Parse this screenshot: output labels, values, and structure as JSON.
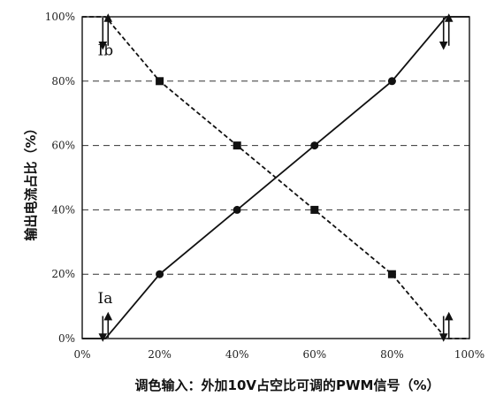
{
  "chart_data": {
    "type": "line",
    "xlabel": "调色输入：外加10V占空比可调的PWM信号（%）",
    "ylabel": "输出电流占比（%）",
    "xlim": [
      0,
      100
    ],
    "ylim": [
      0,
      100
    ],
    "x_ticks": [
      "0%",
      "20%",
      "40%",
      "60%",
      "80%",
      "100%"
    ],
    "y_ticks": [
      "0%",
      "20%",
      "40%",
      "60%",
      "80%",
      "100%"
    ],
    "grid": "horizontal dashed",
    "series": [
      {
        "name": "Ia",
        "line_style": "solid",
        "marker": "circle",
        "x": [
          0,
          6,
          20,
          40,
          60,
          80,
          94,
          100
        ],
        "y": [
          0,
          0,
          20,
          40,
          60,
          80,
          100,
          100
        ],
        "marked_points": [
          [
            20,
            20
          ],
          [
            40,
            40
          ],
          [
            60,
            60
          ],
          [
            80,
            80
          ]
        ]
      },
      {
        "name": "Ib",
        "line_style": "dashed",
        "marker": "square",
        "x": [
          0,
          6,
          20,
          40,
          60,
          80,
          94,
          100
        ],
        "y": [
          100,
          100,
          80,
          60,
          40,
          20,
          0,
          0
        ],
        "marked_points": [
          [
            20,
            80
          ],
          [
            40,
            60
          ],
          [
            60,
            40
          ],
          [
            80,
            20
          ]
        ]
      }
    ],
    "hysteresis_arrows_at_x": [
      6,
      94
    ]
  }
}
